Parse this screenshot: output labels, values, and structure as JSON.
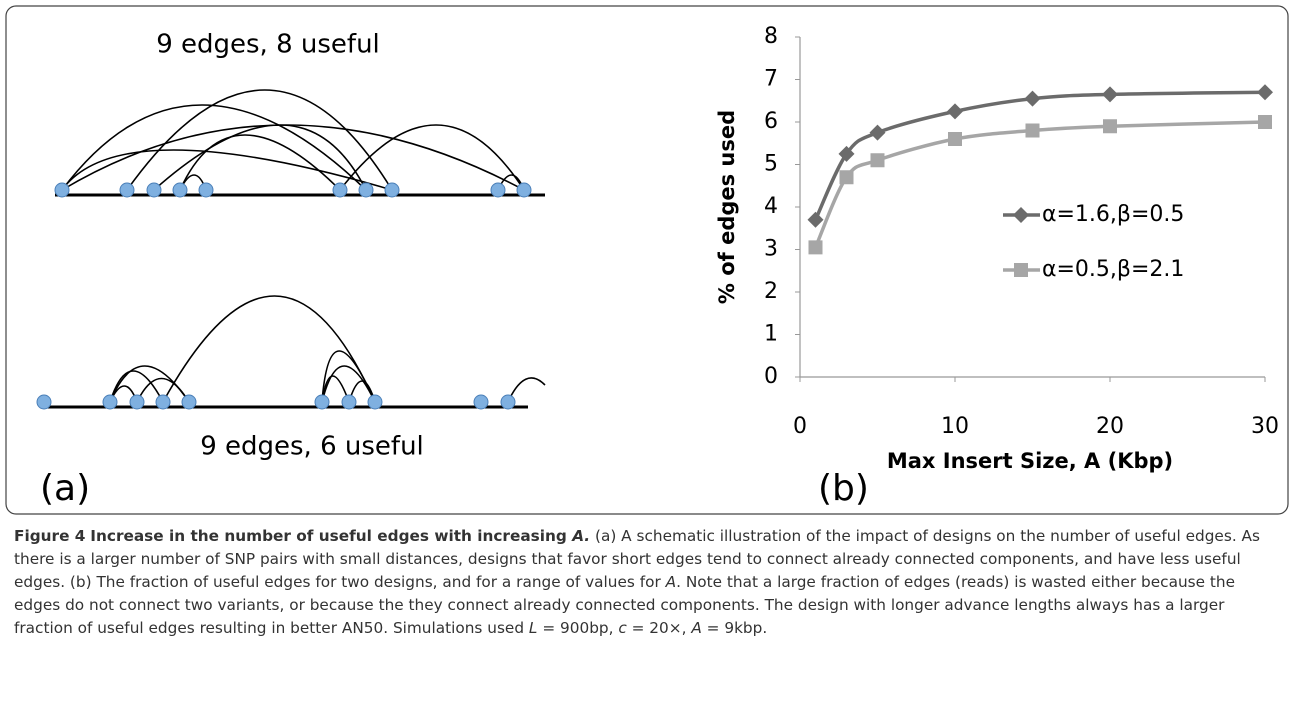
{
  "figure": {
    "panel_a": {
      "top_label": "9 edges, 8 useful",
      "bottom_label": "9 edges, 6 useful",
      "tag": "(a)"
    },
    "panel_b": {
      "tag": "(b)"
    },
    "caption": {
      "label": "Figure 4",
      "title": "Increase in the number of useful edges with increasing ",
      "title_var": "A.",
      "body": [
        "(a) A schematic illustration of the impact of designs on the number of useful edges. As there is a larger number of SNP pairs with small distances, designs that favor short edges tend to connect already connected components, and have less useful edges. (b) The fraction of useful edges for two designs, and for a range of values for ",
        "A",
        ". Note that a large fraction of edges (reads) is wasted either because the edges do not connect two variants, or because the they connect already connected components. The design with longer advance lengths always has a larger fraction of useful edges resulting in better AN50. Simulations used ",
        "L",
        " = 900bp, ",
        "c",
        " = 20×, ",
        "A",
        " = 9kbp."
      ]
    }
  },
  "chart_data": {
    "type": "line",
    "xlabel": "Max Insert Size, A (Kbp)",
    "ylabel": "% of edges used",
    "x": [
      1,
      3,
      5,
      10,
      15,
      20,
      30
    ],
    "series": [
      {
        "name": "α=1.6,β=0.5",
        "color": "#6b6b6b",
        "marker": "diamond",
        "values": [
          3.7,
          5.25,
          5.75,
          6.25,
          6.55,
          6.65,
          6.7
        ]
      },
      {
        "name": "α=0.5,β=2.1",
        "color": "#a6a6a6",
        "marker": "square",
        "values": [
          3.05,
          4.7,
          5.1,
          5.6,
          5.8,
          5.9,
          6.0
        ]
      }
    ],
    "xlim": [
      0,
      30
    ],
    "xticks": [
      0,
      10,
      20,
      30
    ],
    "ylim": [
      0,
      8
    ],
    "yticks": [
      0,
      1,
      2,
      3,
      4,
      5,
      6,
      7,
      8
    ],
    "grid": false
  }
}
